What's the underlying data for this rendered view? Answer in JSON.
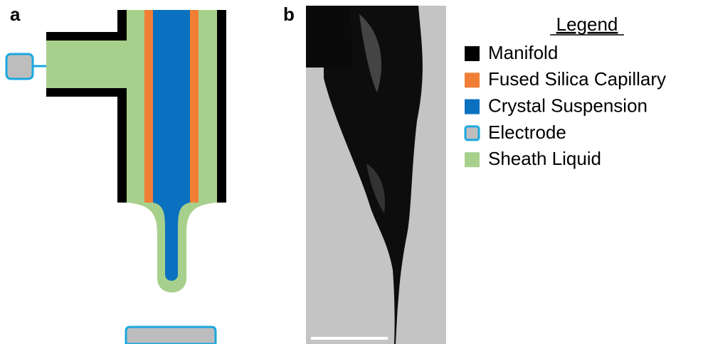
{
  "panels": [
    {
      "label": "a"
    },
    {
      "label": "b"
    }
  ],
  "legend": {
    "title": "Legend",
    "items": [
      {
        "label": "Manifold",
        "color": "#000000"
      },
      {
        "label": "Fused Silica Capillary",
        "color": "#f07f35"
      },
      {
        "label": "Crystal Suspension",
        "color": "#0a70c0"
      },
      {
        "label": "Electrode",
        "color": "#bdbdbd",
        "stroke": "#1aa8e0"
      },
      {
        "label": "Sheath Liquid",
        "color": "#a8d08d"
      }
    ]
  }
}
